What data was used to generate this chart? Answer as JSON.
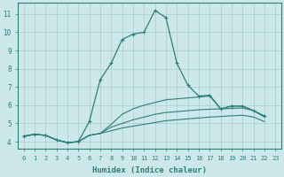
{
  "xlabel": "Humidex (Indice chaleur)",
  "bg_color": "#cce8eb",
  "grid_color": "#aacccc",
  "line_color": "#2e7e78",
  "xlim": [
    -0.5,
    23.5
  ],
  "ylim": [
    3.6,
    11.6
  ],
  "xticks": [
    0,
    1,
    2,
    3,
    4,
    5,
    6,
    7,
    8,
    9,
    10,
    11,
    12,
    13,
    14,
    15,
    16,
    17,
    18,
    19,
    20,
    21,
    22,
    23
  ],
  "yticks": [
    4,
    5,
    6,
    7,
    8,
    9,
    10,
    11
  ],
  "series": [
    [
      4.3,
      4.4,
      4.35,
      4.1,
      3.95,
      4.0,
      5.1,
      7.4,
      8.3,
      9.6,
      9.9,
      10.0,
      11.2,
      10.8,
      8.3,
      7.1,
      6.5,
      6.55,
      5.8,
      5.95,
      5.95,
      5.7,
      5.4,
      null
    ],
    [
      4.3,
      4.4,
      4.35,
      4.1,
      3.95,
      4.0,
      4.35,
      4.45,
      4.95,
      5.5,
      5.8,
      6.0,
      6.15,
      6.3,
      6.35,
      6.4,
      6.45,
      6.5,
      5.8,
      5.95,
      5.95,
      5.7,
      5.4,
      null
    ],
    [
      4.3,
      4.4,
      4.35,
      4.1,
      3.95,
      4.0,
      4.35,
      4.45,
      4.8,
      5.0,
      5.2,
      5.35,
      5.5,
      5.6,
      5.65,
      5.7,
      5.75,
      5.78,
      5.8,
      5.82,
      5.85,
      5.7,
      5.35,
      null
    ],
    [
      4.3,
      4.4,
      4.35,
      4.1,
      3.95,
      4.0,
      4.35,
      4.45,
      4.6,
      4.75,
      4.85,
      4.95,
      5.05,
      5.15,
      5.2,
      5.25,
      5.3,
      5.35,
      5.38,
      5.42,
      5.45,
      5.35,
      5.1,
      null
    ]
  ]
}
